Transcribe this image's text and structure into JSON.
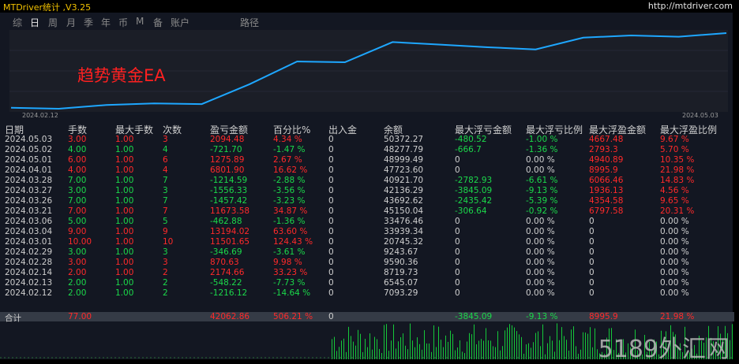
{
  "window": {
    "title": "MTDriver统计 ,V3.25",
    "url": "http://mtdriver.com"
  },
  "tabs": [
    {
      "label": "综",
      "active": false
    },
    {
      "label": "日",
      "active": true
    },
    {
      "label": "周",
      "active": false
    },
    {
      "label": "月",
      "active": false
    },
    {
      "label": "季",
      "active": false
    },
    {
      "label": "年",
      "active": false
    },
    {
      "label": "币",
      "active": false
    },
    {
      "label": "M",
      "active": false
    },
    {
      "label": "备",
      "active": false
    },
    {
      "label": "账户",
      "active": false
    },
    {
      "label": "路径",
      "active": false
    }
  ],
  "equity_chart": {
    "label": "趋势黄金EA",
    "start_date": "2024.02.12",
    "end_date": "2024.05.03",
    "line_color": "#1ea7ff",
    "balances": [
      7093.29,
      6545.07,
      8719.73,
      9590.36,
      9243.67,
      20745.32,
      33939.34,
      33476.46,
      45150.04,
      43692.62,
      42136.29,
      40921.7,
      47723.6,
      48999.49,
      48277.79,
      50372.27
    ]
  },
  "table": {
    "headers": [
      "日期",
      "手数",
      "最大手数",
      "次数",
      "盈亏金额",
      "百分比%",
      "出入金",
      "余额",
      "最大浮亏金额",
      "最大浮亏比例",
      "最大浮盈金额",
      "最大浮盈比例"
    ],
    "rows": [
      {
        "date": "2024.05.03",
        "lots": "3.00",
        "max_lots": "1.00",
        "count": "3",
        "pnl": "2094.48",
        "pct": "4.34 %",
        "inout": "0",
        "balance": "50372.27",
        "max_dd": "-480.52",
        "max_dd_pct": "-1.00 %",
        "max_fp": "4667.48",
        "max_fp_pct": "9.67 %",
        "color": "red"
      },
      {
        "date": "2024.05.02",
        "lots": "4.00",
        "max_lots": "1.00",
        "count": "4",
        "pnl": "-721.70",
        "pct": "-1.47 %",
        "inout": "0",
        "balance": "48277.79",
        "max_dd": "-666.7",
        "max_dd_pct": "-1.36 %",
        "max_fp": "2793.3",
        "max_fp_pct": "5.70 %",
        "color": "green"
      },
      {
        "date": "2024.05.01",
        "lots": "6.00",
        "max_lots": "1.00",
        "count": "6",
        "pnl": "1275.89",
        "pct": "2.67 %",
        "inout": "0",
        "balance": "48999.49",
        "max_dd": "0",
        "max_dd_pct": "0.00 %",
        "max_fp": "4940.89",
        "max_fp_pct": "10.35 %",
        "color": "red"
      },
      {
        "date": "2024.04.01",
        "lots": "4.00",
        "max_lots": "1.00",
        "count": "4",
        "pnl": "6801.90",
        "pct": "16.62 %",
        "inout": "0",
        "balance": "47723.60",
        "max_dd": "0",
        "max_dd_pct": "0.00 %",
        "max_fp": "8995.9",
        "max_fp_pct": "21.98 %",
        "color": "red"
      },
      {
        "date": "2024.03.28",
        "lots": "7.00",
        "max_lots": "1.00",
        "count": "7",
        "pnl": "-1214.59",
        "pct": "-2.88 %",
        "inout": "0",
        "balance": "40921.70",
        "max_dd": "-2782.93",
        "max_dd_pct": "-6.61 %",
        "max_fp": "6066.46",
        "max_fp_pct": "14.83 %",
        "color": "green"
      },
      {
        "date": "2024.03.27",
        "lots": "3.00",
        "max_lots": "1.00",
        "count": "3",
        "pnl": "-1556.33",
        "pct": "-3.56 %",
        "inout": "0",
        "balance": "42136.29",
        "max_dd": "-3845.09",
        "max_dd_pct": "-9.13 %",
        "max_fp": "1936.13",
        "max_fp_pct": "4.56 %",
        "color": "green"
      },
      {
        "date": "2024.03.26",
        "lots": "7.00",
        "max_lots": "1.00",
        "count": "7",
        "pnl": "-1457.42",
        "pct": "-3.23 %",
        "inout": "0",
        "balance": "43692.62",
        "max_dd": "-2435.42",
        "max_dd_pct": "-5.39 %",
        "max_fp": "4354.58",
        "max_fp_pct": "9.65 %",
        "color": "green"
      },
      {
        "date": "2024.03.21",
        "lots": "7.00",
        "max_lots": "1.00",
        "count": "7",
        "pnl": "11673.58",
        "pct": "34.87 %",
        "inout": "0",
        "balance": "45150.04",
        "max_dd": "-306.64",
        "max_dd_pct": "-0.92 %",
        "max_fp": "6797.58",
        "max_fp_pct": "20.31 %",
        "color": "red"
      },
      {
        "date": "2024.03.06",
        "lots": "5.00",
        "max_lots": "1.00",
        "count": "5",
        "pnl": "-462.88",
        "pct": "-1.36 %",
        "inout": "0",
        "balance": "33476.46",
        "max_dd": "0",
        "max_dd_pct": "0.00 %",
        "max_fp": "0",
        "max_fp_pct": "0.00 %",
        "color": "green"
      },
      {
        "date": "2024.03.04",
        "lots": "9.00",
        "max_lots": "1.00",
        "count": "9",
        "pnl": "13194.02",
        "pct": "63.60 %",
        "inout": "0",
        "balance": "33939.34",
        "max_dd": "0",
        "max_dd_pct": "0.00 %",
        "max_fp": "0",
        "max_fp_pct": "0.00 %",
        "color": "red"
      },
      {
        "date": "2024.03.01",
        "lots": "10.00",
        "max_lots": "1.00",
        "count": "10",
        "pnl": "11501.65",
        "pct": "124.43 %",
        "inout": "0",
        "balance": "20745.32",
        "max_dd": "0",
        "max_dd_pct": "0.00 %",
        "max_fp": "0",
        "max_fp_pct": "0.00 %",
        "color": "red"
      },
      {
        "date": "2024.02.29",
        "lots": "3.00",
        "max_lots": "1.00",
        "count": "3",
        "pnl": "-346.69",
        "pct": "-3.61 %",
        "inout": "0",
        "balance": "9243.67",
        "max_dd": "0",
        "max_dd_pct": "0.00 %",
        "max_fp": "0",
        "max_fp_pct": "0.00 %",
        "color": "green"
      },
      {
        "date": "2024.02.28",
        "lots": "3.00",
        "max_lots": "1.00",
        "count": "3",
        "pnl": "870.63",
        "pct": "9.98 %",
        "inout": "0",
        "balance": "9590.36",
        "max_dd": "0",
        "max_dd_pct": "0.00 %",
        "max_fp": "0",
        "max_fp_pct": "0.00 %",
        "color": "red"
      },
      {
        "date": "2024.02.14",
        "lots": "2.00",
        "max_lots": "1.00",
        "count": "2",
        "pnl": "2174.66",
        "pct": "33.23 %",
        "inout": "0",
        "balance": "8719.73",
        "max_dd": "0",
        "max_dd_pct": "0.00 %",
        "max_fp": "0",
        "max_fp_pct": "0.00 %",
        "color": "red"
      },
      {
        "date": "2024.02.13",
        "lots": "2.00",
        "max_lots": "1.00",
        "count": "2",
        "pnl": "-548.22",
        "pct": "-7.73 %",
        "inout": "0",
        "balance": "6545.07",
        "max_dd": "0",
        "max_dd_pct": "0.00 %",
        "max_fp": "0",
        "max_fp_pct": "0.00 %",
        "color": "green"
      },
      {
        "date": "2024.02.12",
        "lots": "2.00",
        "max_lots": "1.00",
        "count": "2",
        "pnl": "-1216.12",
        "pct": "-14.64 %",
        "inout": "0",
        "balance": "7093.29",
        "max_dd": "0",
        "max_dd_pct": "0.00 %",
        "max_fp": "0",
        "max_fp_pct": "0.00 %",
        "color": "green"
      }
    ],
    "total": {
      "label": "合计",
      "lots": "77.00",
      "pnl": "42062.86",
      "pct": "506.21 %",
      "inout": "0",
      "max_dd": "-3845.09",
      "max_dd_pct": "-9.13 %",
      "max_fp": "8995.9",
      "max_fp_pct": "21.98 %"
    }
  },
  "watermark": "5189外汇网",
  "colors": {
    "profit": "#ff2a2a",
    "loss": "#1bd84a",
    "title": "#f2c200",
    "equity_line": "#1ea7ff",
    "background": "#131722"
  }
}
